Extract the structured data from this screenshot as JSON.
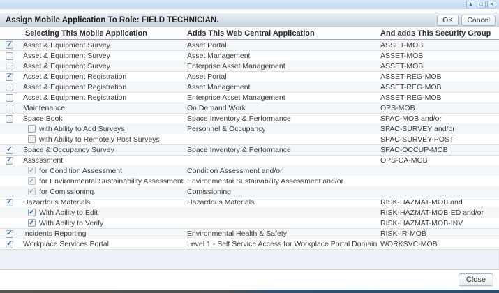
{
  "window": {
    "controls": [
      {
        "name": "collapse",
        "glyph": "▲"
      },
      {
        "name": "maximize",
        "glyph": "□"
      },
      {
        "name": "close",
        "glyph": "×"
      }
    ]
  },
  "dialog": {
    "title": "Assign Mobile Application To Role: FIELD TECHNICIAN.",
    "ok_label": "OK",
    "cancel_label": "Cancel",
    "close_label": "Close"
  },
  "table": {
    "columns": [
      "Selecting This Mobile Application",
      "Adds This Web Central Application",
      "And adds This Security Group"
    ],
    "rows": [
      {
        "checked": true,
        "disabled": false,
        "indent": 0,
        "sep": false,
        "app": "Asset & Equipment Survey",
        "web": "Asset Portal",
        "group": "ASSET-MOB"
      },
      {
        "checked": false,
        "disabled": false,
        "indent": 0,
        "sep": true,
        "app": "Asset & Equipment Survey",
        "web": "Asset Management",
        "group": "ASSET-MOB"
      },
      {
        "checked": false,
        "disabled": false,
        "indent": 0,
        "sep": true,
        "app": "Asset & Equipment Survey",
        "web": "Enterprise Asset Management",
        "group": "ASSET-MOB"
      },
      {
        "checked": true,
        "disabled": false,
        "indent": 0,
        "sep": true,
        "app": "Asset & Equipment Registration",
        "web": "Asset Portal",
        "group": "ASSET-REG-MOB"
      },
      {
        "checked": false,
        "disabled": false,
        "indent": 0,
        "sep": true,
        "app": "Asset & Equipment Registration",
        "web": "Asset Management",
        "group": "ASSET-REG-MOB"
      },
      {
        "checked": false,
        "disabled": false,
        "indent": 0,
        "sep": true,
        "app": "Asset & Equipment Registration",
        "web": "Enterprise Asset Management",
        "group": "ASSET-REG-MOB"
      },
      {
        "checked": false,
        "disabled": false,
        "indent": 0,
        "sep": true,
        "app": "Maintenance",
        "web": "On Demand Work",
        "group": "OPS-MOB"
      },
      {
        "checked": false,
        "disabled": false,
        "indent": 0,
        "sep": true,
        "app": "Space Book",
        "web": "Space Inventory & Performance",
        "group": "SPAC-MOB and/or"
      },
      {
        "checked": false,
        "disabled": false,
        "indent": 1,
        "sep": false,
        "app": "with Ability to Add Surveys",
        "web": "Personnel & Occupancy",
        "group": "SPAC-SURVEY and/or"
      },
      {
        "checked": false,
        "disabled": false,
        "indent": 1,
        "sep": false,
        "app": "with Ability to Remotely Post Surveys",
        "web": "",
        "group": "SPAC-SURVEY-POST"
      },
      {
        "checked": true,
        "disabled": false,
        "indent": 0,
        "sep": true,
        "app": "Space & Occupancy Survey",
        "web": "Space Inventory & Performance",
        "group": "SPAC-OCCUP-MOB"
      },
      {
        "checked": true,
        "disabled": false,
        "indent": 0,
        "sep": true,
        "app": "Assessment",
        "web": "",
        "group": "OPS-CA-MOB"
      },
      {
        "checked": true,
        "disabled": true,
        "indent": 1,
        "sep": false,
        "app": "for Condition Assessment",
        "web": "Condition Assessment and/or",
        "group": ""
      },
      {
        "checked": true,
        "disabled": true,
        "indent": 1,
        "sep": false,
        "app": "for Environmental Sustainability Assessment",
        "web": "Environmental Sustainability Assessment and/or",
        "group": ""
      },
      {
        "checked": true,
        "disabled": true,
        "indent": 1,
        "sep": false,
        "app": "for Comissioning",
        "web": "Comissioning",
        "group": ""
      },
      {
        "checked": true,
        "disabled": false,
        "indent": 0,
        "sep": true,
        "app": "Hazardous Materials",
        "web": "Hazardous Materials",
        "group": "RISK-HAZMAT-MOB and"
      },
      {
        "checked": true,
        "disabled": false,
        "indent": 1,
        "sep": false,
        "app": "With Ability to Edit",
        "web": "",
        "group": "RISK-HAZMAT-MOB-ED and/or"
      },
      {
        "checked": true,
        "disabled": false,
        "indent": 1,
        "sep": false,
        "app": "With Ability to Verify",
        "web": "",
        "group": "RISK-HAZMAT-MOB-INV"
      },
      {
        "checked": true,
        "disabled": false,
        "indent": 0,
        "sep": true,
        "app": "Incidents Reporting",
        "web": "Environmental Health & Safety",
        "group": "RISK-IR-MOB"
      },
      {
        "checked": true,
        "disabled": false,
        "indent": 0,
        "sep": true,
        "app": "Workplace Services Portal",
        "web": "Level 1 - Self Service Access for Workplace Portal Domain",
        "group": "WORKSVC-MOB"
      }
    ]
  }
}
